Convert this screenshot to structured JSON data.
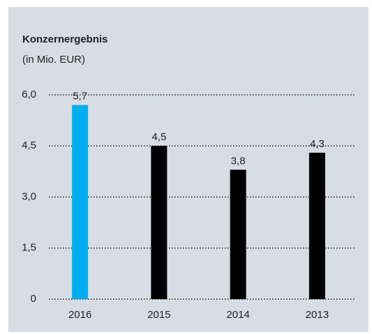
{
  "chart_data": {
    "type": "bar",
    "title": "Konzernergebnis",
    "subtitle": "(in Mio. EUR)",
    "categories": [
      "2016",
      "2015",
      "2014",
      "2013"
    ],
    "values": [
      5.7,
      4.5,
      3.8,
      4.3
    ],
    "value_labels": [
      "5,7",
      "4,5",
      "3,8",
      "4,3"
    ],
    "colors": [
      "#00aeef",
      "#000000",
      "#000000",
      "#000000"
    ],
    "ylim": [
      0,
      6
    ],
    "yticks": [
      0,
      {
        "value": 1.5,
        "label": "1,5"
      },
      {
        "value": 3,
        "label": "3,0"
      },
      {
        "value": 4.5,
        "label": "4,5"
      },
      {
        "value": 6,
        "label": "6,0"
      }
    ],
    "grid": true
  }
}
